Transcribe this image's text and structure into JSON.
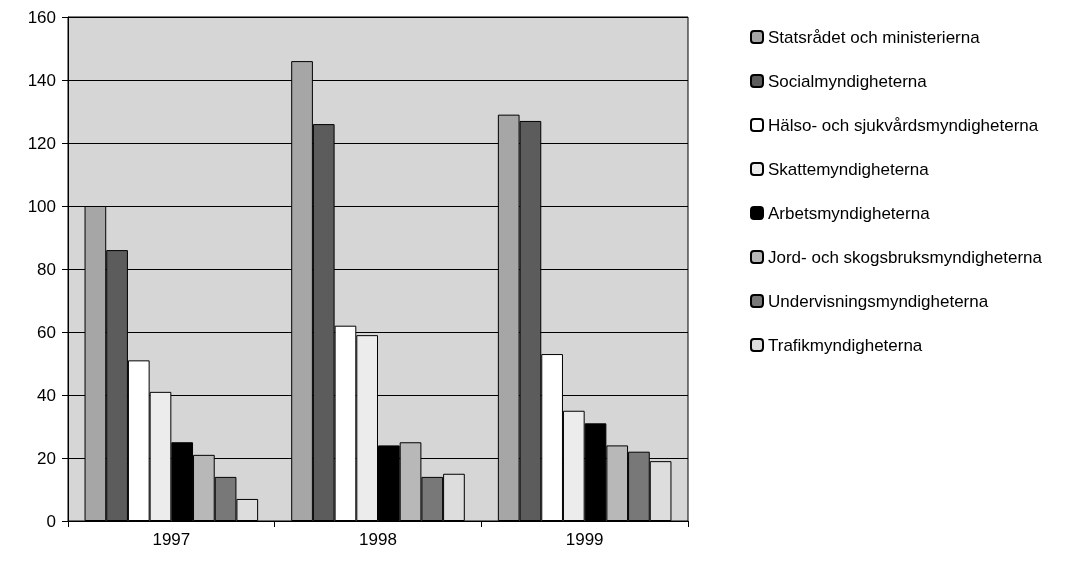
{
  "chart_data": {
    "type": "bar",
    "categories": [
      "1997",
      "1998",
      "1999"
    ],
    "series": [
      {
        "name": "Statsrådet och ministerierna",
        "color": "#a6a6a6",
        "values": [
          100,
          146,
          129
        ]
      },
      {
        "name": "Socialmyndigheterna",
        "color": "#5c5c5c",
        "values": [
          86,
          126,
          127
        ]
      },
      {
        "name": "Hälso- och sjukvårdsmyndigheterna",
        "color": "#ffffff",
        "values": [
          51,
          62,
          53
        ]
      },
      {
        "name": "Skattemyndigheterna",
        "color": "#ececec",
        "values": [
          41,
          59,
          35
        ]
      },
      {
        "name": "Arbetsmyndigheterna",
        "color": "#000000",
        "values": [
          25,
          24,
          31
        ]
      },
      {
        "name": "Jord- och skogsbruksmyndigheterna",
        "color": "#b8b8b8",
        "values": [
          21,
          25,
          24
        ]
      },
      {
        "name": "Undervisningsmyndigheterna",
        "color": "#787878",
        "values": [
          14,
          14,
          22
        ]
      },
      {
        "name": "Trafikmyndigheterna",
        "color": "#dddddd",
        "values": [
          7,
          15,
          19
        ]
      }
    ],
    "ylim": [
      0,
      160
    ],
    "yticks": [
      0,
      20,
      40,
      60,
      80,
      100,
      120,
      140,
      160
    ],
    "grid": "y",
    "legend": "right"
  }
}
